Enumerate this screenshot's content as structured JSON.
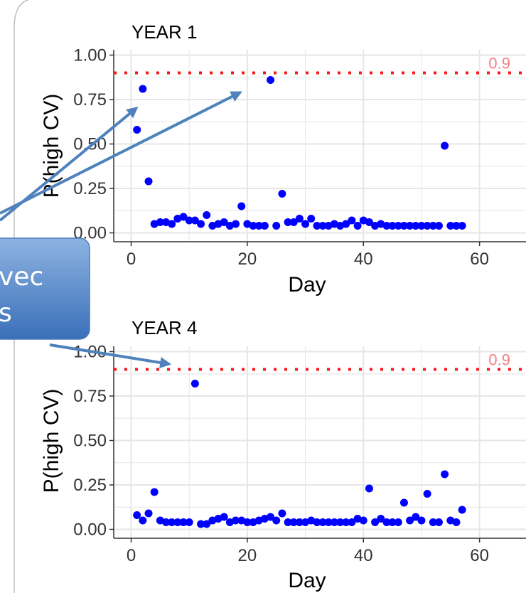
{
  "colors": {
    "point": "#0000ff",
    "threshold": "#ee1c1c",
    "threshold_label": "#f08080",
    "grid": "#e6e6e6",
    "arrow": "#4f81bd",
    "callout_fill_top": "#8db3e2",
    "callout_fill_bottom": "#3a6fb8",
    "frame": "#bfbfbf"
  },
  "callout": {
    "text_line1": "vec",
    "text_line2": "s"
  },
  "chart_data": [
    {
      "type": "scatter",
      "title": "YEAR 1",
      "xlabel": "Day",
      "ylabel": "P(high CV)",
      "xlim": [
        -3,
        68
      ],
      "ylim": [
        -0.05,
        1.03
      ],
      "xticks": [
        "0",
        "20",
        "40",
        "60"
      ],
      "yticks": [
        "0.00",
        "0.25",
        "0.50",
        "0.75",
        "1.00"
      ],
      "grid": true,
      "threshold": {
        "value": 0.9,
        "label": "0.9"
      },
      "points": [
        [
          1,
          0.58
        ],
        [
          2,
          0.81
        ],
        [
          3,
          0.29
        ],
        [
          4,
          0.05
        ],
        [
          5,
          0.06
        ],
        [
          6,
          0.06
        ],
        [
          7,
          0.05
        ],
        [
          8,
          0.08
        ],
        [
          9,
          0.09
        ],
        [
          10,
          0.07
        ],
        [
          11,
          0.07
        ],
        [
          12,
          0.05
        ],
        [
          13,
          0.1
        ],
        [
          14,
          0.04
        ],
        [
          15,
          0.05
        ],
        [
          16,
          0.06
        ],
        [
          17,
          0.04
        ],
        [
          18,
          0.05
        ],
        [
          19,
          0.15
        ],
        [
          20,
          0.05
        ],
        [
          21,
          0.04
        ],
        [
          22,
          0.04
        ],
        [
          23,
          0.04
        ],
        [
          24,
          0.86
        ],
        [
          25,
          0.04
        ],
        [
          26,
          0.22
        ],
        [
          27,
          0.06
        ],
        [
          28,
          0.06
        ],
        [
          29,
          0.08
        ],
        [
          30,
          0.05
        ],
        [
          31,
          0.08
        ],
        [
          32,
          0.04
        ],
        [
          33,
          0.04
        ],
        [
          34,
          0.04
        ],
        [
          35,
          0.05
        ],
        [
          36,
          0.04
        ],
        [
          37,
          0.05
        ],
        [
          38,
          0.07
        ],
        [
          39,
          0.04
        ],
        [
          40,
          0.07
        ],
        [
          41,
          0.06
        ],
        [
          42,
          0.04
        ],
        [
          43,
          0.05
        ],
        [
          44,
          0.04
        ],
        [
          45,
          0.04
        ],
        [
          46,
          0.04
        ],
        [
          47,
          0.04
        ],
        [
          48,
          0.04
        ],
        [
          49,
          0.04
        ],
        [
          50,
          0.04
        ],
        [
          51,
          0.04
        ],
        [
          52,
          0.04
        ],
        [
          53,
          0.04
        ],
        [
          54,
          0.49
        ],
        [
          55,
          0.04
        ],
        [
          56,
          0.04
        ],
        [
          57,
          0.04
        ]
      ]
    },
    {
      "type": "scatter",
      "title": "YEAR 4",
      "xlabel": "Day",
      "ylabel": "P(high CV)",
      "xlim": [
        -3,
        68
      ],
      "ylim": [
        -0.05,
        1.03
      ],
      "xticks": [
        "0",
        "20",
        "40",
        "60"
      ],
      "yticks": [
        "0.00",
        "0.25",
        "0.50",
        "0.75",
        "1.00"
      ],
      "grid": true,
      "threshold": {
        "value": 0.9,
        "label": "0.9"
      },
      "points": [
        [
          1,
          0.08
        ],
        [
          2,
          0.05
        ],
        [
          3,
          0.09
        ],
        [
          4,
          0.21
        ],
        [
          5,
          0.05
        ],
        [
          6,
          0.04
        ],
        [
          7,
          0.04
        ],
        [
          8,
          0.04
        ],
        [
          9,
          0.04
        ],
        [
          10,
          0.04
        ],
        [
          11,
          0.82
        ],
        [
          12,
          0.03
        ],
        [
          13,
          0.03
        ],
        [
          14,
          0.05
        ],
        [
          15,
          0.06
        ],
        [
          16,
          0.07
        ],
        [
          17,
          0.04
        ],
        [
          18,
          0.05
        ],
        [
          19,
          0.05
        ],
        [
          20,
          0.04
        ],
        [
          21,
          0.04
        ],
        [
          22,
          0.05
        ],
        [
          23,
          0.06
        ],
        [
          24,
          0.07
        ],
        [
          25,
          0.05
        ],
        [
          26,
          0.09
        ],
        [
          27,
          0.04
        ],
        [
          28,
          0.04
        ],
        [
          29,
          0.04
        ],
        [
          30,
          0.04
        ],
        [
          31,
          0.05
        ],
        [
          32,
          0.04
        ],
        [
          33,
          0.04
        ],
        [
          34,
          0.04
        ],
        [
          35,
          0.04
        ],
        [
          36,
          0.04
        ],
        [
          37,
          0.04
        ],
        [
          38,
          0.04
        ],
        [
          39,
          0.06
        ],
        [
          40,
          0.05
        ],
        [
          41,
          0.23
        ],
        [
          42,
          0.04
        ],
        [
          43,
          0.06
        ],
        [
          44,
          0.04
        ],
        [
          45,
          0.04
        ],
        [
          46,
          0.04
        ],
        [
          47,
          0.15
        ],
        [
          48,
          0.05
        ],
        [
          49,
          0.07
        ],
        [
          50,
          0.05
        ],
        [
          51,
          0.2
        ],
        [
          52,
          0.04
        ],
        [
          53,
          0.04
        ],
        [
          54,
          0.31
        ],
        [
          55,
          0.05
        ],
        [
          56,
          0.04
        ],
        [
          57,
          0.11
        ]
      ]
    }
  ]
}
